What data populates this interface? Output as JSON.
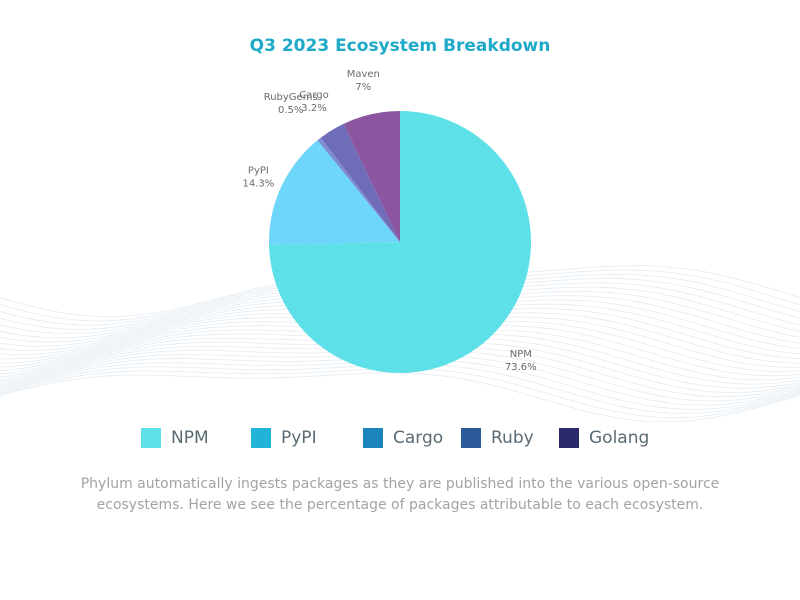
{
  "chart_data": {
    "type": "pie",
    "title": "Q3 2023 Ecosystem Breakdown",
    "slices": [
      {
        "name": "NPM",
        "label": "NPM",
        "pct_label": "73.6%",
        "value": 73.6,
        "color": "#5ee0e8"
      },
      {
        "name": "PyPI",
        "label": "PyPI",
        "pct_label": "14.3%",
        "value": 14.3,
        "color": "#6ed6fb"
      },
      {
        "name": "RubyGems",
        "label": "RubyGems",
        "pct_label": "0.5%",
        "value": 0.5,
        "color": "#7d8fd0"
      },
      {
        "name": "Cargo",
        "label": "Cargo",
        "pct_label": "3.2%",
        "value": 3.2,
        "color": "#6f6cb9"
      },
      {
        "name": "Maven",
        "label": "Maven",
        "pct_label": "7%",
        "value": 7,
        "color": "#8c55a0"
      }
    ],
    "legend": [
      {
        "label": "NPM",
        "color": "#5ee0e8"
      },
      {
        "label": "PyPI",
        "color": "#23b3d7"
      },
      {
        "label": "Cargo",
        "color": "#1b84bd"
      },
      {
        "label": "Ruby",
        "color": "#2c5b9b"
      },
      {
        "label": "Golang",
        "color": "#2b2b6b"
      }
    ],
    "legend_position": "bottom"
  },
  "caption": "Phylum automatically ingests packages as they are published into the various open-source ecosystems. Here we see the percentage of packages attributable to each ecosystem."
}
